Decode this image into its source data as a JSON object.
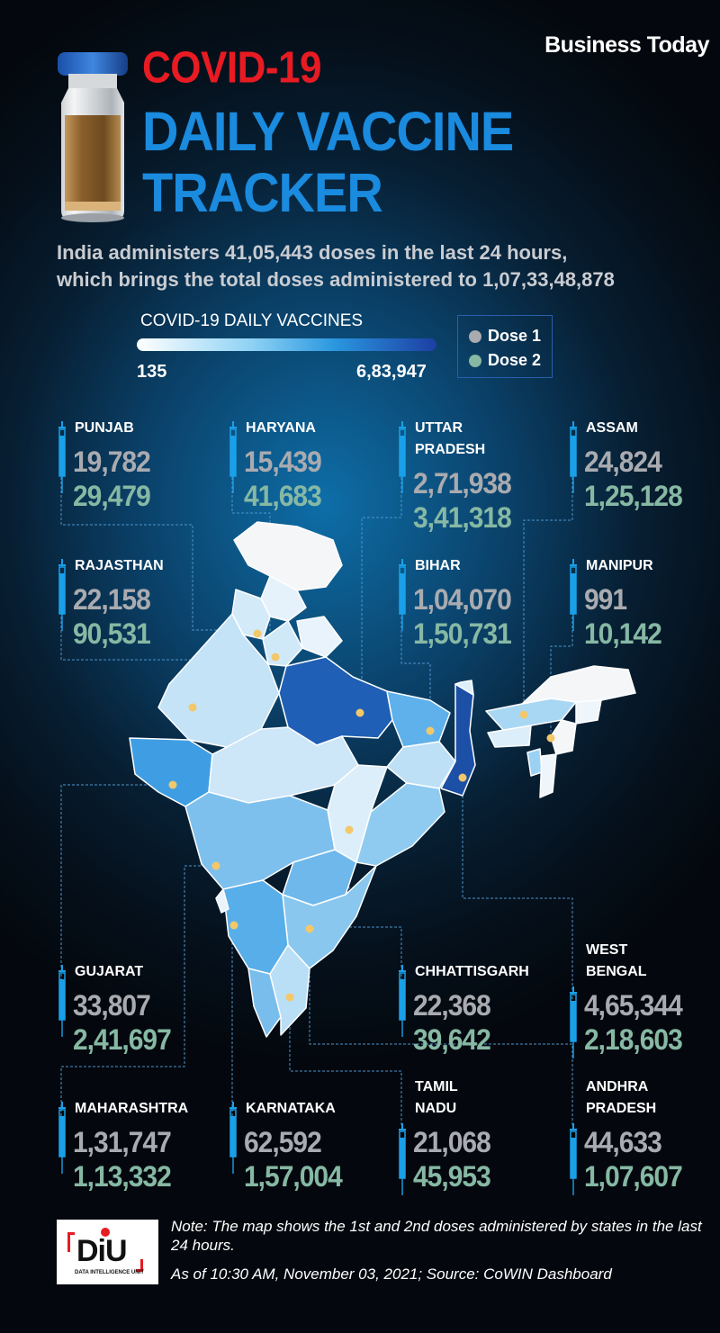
{
  "brand": "Business Today",
  "title": {
    "line1": "COVID-19",
    "line2": "DAILY VACCINE",
    "line3": "TRACKER"
  },
  "intro": {
    "line1": "India administers 41,05,443 doses in the last 24 hours,",
    "line2": "which brings the total doses administered to 1,07,33,48,878"
  },
  "legend": {
    "title": "COVID-19 DAILY VACCINES",
    "min": "135",
    "max": "6,83,947",
    "dose1": "Dose 1",
    "dose2": "Dose 2"
  },
  "colors": {
    "dose1": "#a9abb0",
    "dose2": "#86b8a4",
    "title_red": "#e81b23",
    "title_blue": "#1a8bde",
    "accent_blue": "#1aa0e8"
  },
  "states": [
    {
      "name": "PUNJAB",
      "dose1": "19,782",
      "dose2": "29,479"
    },
    {
      "name": "HARYANA",
      "dose1": "15,439",
      "dose2": "41,683"
    },
    {
      "name": "UTTAR\nPRADESH",
      "dose1": "2,71,938",
      "dose2": "3,41,318"
    },
    {
      "name": "ASSAM",
      "dose1": "24,824",
      "dose2": "1,25,128"
    },
    {
      "name": "RAJASTHAN",
      "dose1": "22,158",
      "dose2": "90,531"
    },
    {
      "name": "BIHAR",
      "dose1": "1,04,070",
      "dose2": "1,50,731"
    },
    {
      "name": "MANIPUR",
      "dose1": "991",
      "dose2": "10,142"
    },
    {
      "name": "GUJARAT",
      "dose1": "33,807",
      "dose2": "2,41,697"
    },
    {
      "name": "CHHATTISGARH",
      "dose1": "22,368",
      "dose2": "39,642"
    },
    {
      "name": "WEST\nBENGAL",
      "dose1": "4,65,344",
      "dose2": "2,18,603"
    },
    {
      "name": "MAHARASHTRA",
      "dose1": "1,31,747",
      "dose2": "1,13,332"
    },
    {
      "name": "KARNATAKA",
      "dose1": "62,592",
      "dose2": "1,57,004"
    },
    {
      "name": "TAMIL\nNADU",
      "dose1": "21,068",
      "dose2": "45,953"
    },
    {
      "name": "ANDHRA\nPRADESH",
      "dose1": "44,633",
      "dose2": "1,07,607"
    }
  ],
  "footer": {
    "logo_text": "DiU",
    "logo_sub": "DATA INTELLIGENCE UNIT",
    "note": "Note: The map shows the 1st and 2nd doses administered by states in the last 24 hours.",
    "source": "As of 10:30 AM, November 03, 2021; Source: CoWIN Dashboard"
  }
}
